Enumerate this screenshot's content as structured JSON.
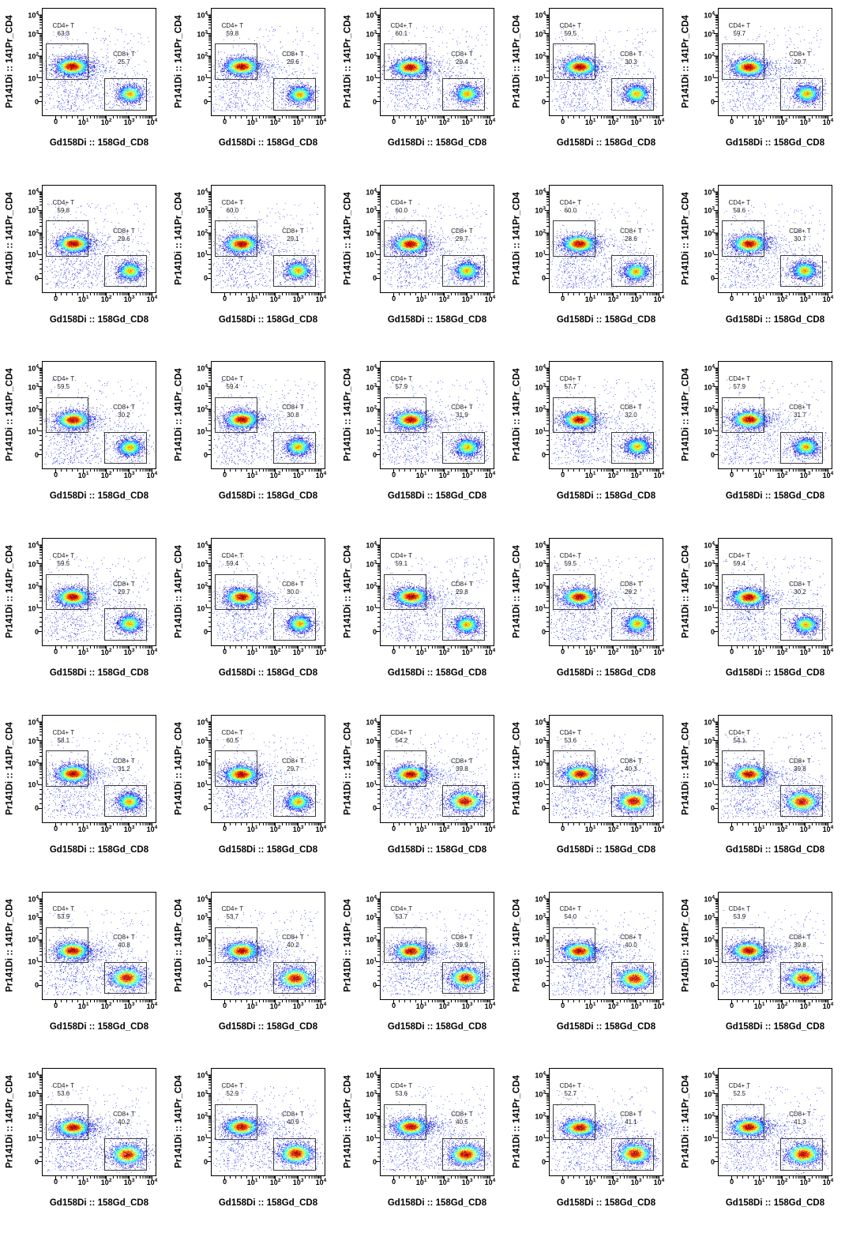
{
  "chart_data": {
    "type": "scatter",
    "subtype": "flow-cytometry-pseudocolor-grid",
    "grid": {
      "rows": 7,
      "cols": 5
    },
    "x_axis": {
      "label": "Gd158Di :: 158Gd_CD8",
      "scale": "arcsinh-log",
      "ticks": [
        {
          "base": "0",
          "exp": "",
          "pos": 0.122
        },
        {
          "base": "10",
          "exp": "1",
          "pos": 0.363
        },
        {
          "base": "10",
          "exp": "2",
          "pos": 0.563
        },
        {
          "base": "10",
          "exp": "3",
          "pos": 0.763
        },
        {
          "base": "10",
          "exp": "4",
          "pos": 0.962
        }
      ]
    },
    "y_axis": {
      "label": "Pr141Di :: 141Pr_CD4",
      "scale": "arcsinh-log",
      "ticks": [
        {
          "base": "0",
          "exp": "",
          "pos": 0.865
        },
        {
          "base": "10",
          "exp": "1",
          "pos": 0.646
        },
        {
          "base": "10",
          "exp": "2",
          "pos": 0.444
        },
        {
          "base": "10",
          "exp": "3",
          "pos": 0.239
        },
        {
          "base": "10",
          "exp": "4",
          "pos": 0.066
        }
      ]
    },
    "gates": {
      "cd4": {
        "name": "CD4+ T",
        "x0": 0.028,
        "y0": 0.329,
        "x1": 0.391,
        "y1": 0.651,
        "label_cx": 0.184,
        "label_top": 0.125
      },
      "cd8": {
        "name": "CD8+ T",
        "x0": 0.548,
        "y0": 0.653,
        "x1": 0.908,
        "y1": 0.938,
        "label_cx": 0.72,
        "label_top": 0.392
      }
    },
    "populations": {
      "cd4": {
        "cx": 0.265,
        "cy": 0.545,
        "sx": 0.075,
        "sy": 0.042,
        "peak": 1.0
      },
      "cd8_lo": {
        "cx": 0.77,
        "cy": 0.8,
        "sx": 0.055,
        "sy": 0.042,
        "peak": 0.72
      },
      "cd8_hi": {
        "cx": 0.745,
        "cy": 0.8,
        "sx": 0.075,
        "sy": 0.05,
        "peak": 0.97
      },
      "debris": {
        "n": 700
      }
    },
    "plots": [
      {
        "row": 1,
        "col": 1,
        "cd4_pct": "63.3",
        "cd8_pct": "25.7"
      },
      {
        "row": 1,
        "col": 2,
        "cd4_pct": "59.8",
        "cd8_pct": "29.6"
      },
      {
        "row": 1,
        "col": 3,
        "cd4_pct": "60.1",
        "cd8_pct": "29.4"
      },
      {
        "row": 1,
        "col": 4,
        "cd4_pct": "59.5",
        "cd8_pct": "30.3"
      },
      {
        "row": 1,
        "col": 5,
        "cd4_pct": "59.7",
        "cd8_pct": "29.7"
      },
      {
        "row": 2,
        "col": 1,
        "cd4_pct": "59.8",
        "cd8_pct": "29.6"
      },
      {
        "row": 2,
        "col": 2,
        "cd4_pct": "60.0",
        "cd8_pct": "29.1"
      },
      {
        "row": 2,
        "col": 3,
        "cd4_pct": "60.0",
        "cd8_pct": "29.7"
      },
      {
        "row": 2,
        "col": 4,
        "cd4_pct": "60.0",
        "cd8_pct": "28.6"
      },
      {
        "row": 2,
        "col": 5,
        "cd4_pct": "58.6",
        "cd8_pct": "30.7"
      },
      {
        "row": 3,
        "col": 1,
        "cd4_pct": "59.5",
        "cd8_pct": "30.2"
      },
      {
        "row": 3,
        "col": 2,
        "cd4_pct": "59.4",
        "cd8_pct": "30.8"
      },
      {
        "row": 3,
        "col": 3,
        "cd4_pct": "57.9",
        "cd8_pct": "31.9"
      },
      {
        "row": 3,
        "col": 4,
        "cd4_pct": "57.7",
        "cd8_pct": "32.0"
      },
      {
        "row": 3,
        "col": 5,
        "cd4_pct": "57.9",
        "cd8_pct": "31.7"
      },
      {
        "row": 4,
        "col": 1,
        "cd4_pct": "59.5",
        "cd8_pct": "29.7"
      },
      {
        "row": 4,
        "col": 2,
        "cd4_pct": "59.4",
        "cd8_pct": "30.0"
      },
      {
        "row": 4,
        "col": 3,
        "cd4_pct": "59.1",
        "cd8_pct": "29.8"
      },
      {
        "row": 4,
        "col": 4,
        "cd4_pct": "59.5",
        "cd8_pct": "29.2"
      },
      {
        "row": 4,
        "col": 5,
        "cd4_pct": "59.4",
        "cd8_pct": "30.2"
      },
      {
        "row": 5,
        "col": 1,
        "cd4_pct": "58.1",
        "cd8_pct": "31.2"
      },
      {
        "row": 5,
        "col": 2,
        "cd4_pct": "60.5",
        "cd8_pct": "29.7"
      },
      {
        "row": 5,
        "col": 3,
        "cd4_pct": "54.2",
        "cd8_pct": "39.8"
      },
      {
        "row": 5,
        "col": 4,
        "cd4_pct": "53.6",
        "cd8_pct": "40.3"
      },
      {
        "row": 5,
        "col": 5,
        "cd4_pct": "54.1",
        "cd8_pct": "39.8"
      },
      {
        "row": 6,
        "col": 1,
        "cd4_pct": "53.9",
        "cd8_pct": "40.8"
      },
      {
        "row": 6,
        "col": 2,
        "cd4_pct": "53.7",
        "cd8_pct": "40.2"
      },
      {
        "row": 6,
        "col": 3,
        "cd4_pct": "53.7",
        "cd8_pct": "39.9"
      },
      {
        "row": 6,
        "col": 4,
        "cd4_pct": "54.0",
        "cd8_pct": "40.0"
      },
      {
        "row": 6,
        "col": 5,
        "cd4_pct": "53.9",
        "cd8_pct": "39.8"
      },
      {
        "row": 7,
        "col": 1,
        "cd4_pct": "53.6",
        "cd8_pct": "40.2"
      },
      {
        "row": 7,
        "col": 2,
        "cd4_pct": "52.9",
        "cd8_pct": "40.9"
      },
      {
        "row": 7,
        "col": 3,
        "cd4_pct": "53.6",
        "cd8_pct": "40.5"
      },
      {
        "row": 7,
        "col": 4,
        "cd4_pct": "52.7",
        "cd8_pct": "41.1"
      },
      {
        "row": 7,
        "col": 5,
        "cd4_pct": "52.5",
        "cd8_pct": "41.3"
      }
    ],
    "colors": {
      "background": "#ffffff",
      "frame": "#000000",
      "gate_border": "#3d3d3d",
      "density_scale": [
        "#000080",
        "#0000ff",
        "#00ffff",
        "#00ff00",
        "#ffff00",
        "#ff0000",
        "#800000"
      ]
    }
  }
}
